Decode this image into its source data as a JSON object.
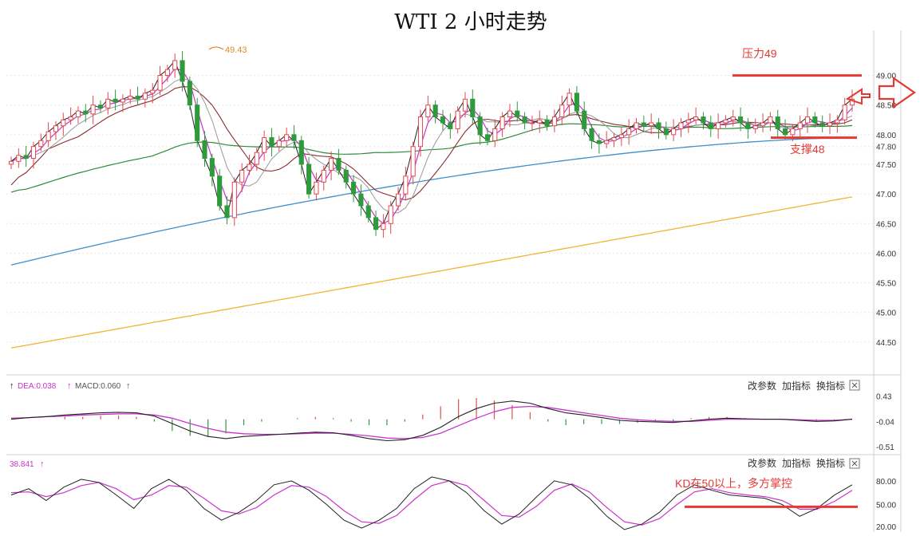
{
  "chart_data": [
    {
      "type": "candlestick",
      "title": "WTI 2 小时走势",
      "price_ylim": [
        44.0,
        49.6
      ],
      "y_ticks": [
        "49.00",
        "48.50",
        "48.00",
        "47.80",
        "47.50",
        "47.00",
        "46.50",
        "46.00",
        "45.50",
        "45.00",
        "44.50"
      ],
      "high_label": "49.43",
      "annotations": {
        "resistance": {
          "label": "压力49",
          "value": 49.0
        },
        "support": {
          "label": "支撑48",
          "value": 47.95
        }
      },
      "colors": {
        "up": "#e0484f",
        "down": "#2e9a3c",
        "ma200": "#f0b437",
        "ma100": "#3a8fce",
        "ma60": "#2e8b3b",
        "ma30": "#8b2b2b",
        "ma10": "#999999",
        "ma5": "#cc33cc",
        "close_line": "#222222",
        "annotation": "#e53935"
      },
      "closes": [
        47.55,
        47.65,
        47.6,
        47.8,
        47.9,
        48.05,
        48.15,
        48.25,
        48.3,
        48.4,
        48.35,
        48.5,
        48.45,
        48.6,
        48.55,
        48.6,
        48.65,
        48.6,
        48.7,
        48.75,
        49.0,
        49.1,
        49.25,
        48.9,
        48.5,
        47.9,
        47.6,
        47.3,
        46.8,
        46.6,
        47.2,
        47.4,
        47.5,
        47.7,
        47.95,
        47.8,
        47.9,
        48.0,
        47.9,
        47.5,
        47.0,
        47.2,
        47.4,
        47.6,
        47.4,
        47.2,
        47.0,
        46.8,
        46.6,
        46.4,
        46.5,
        46.8,
        47.0,
        47.3,
        47.8,
        48.3,
        48.5,
        48.3,
        48.2,
        48.1,
        48.4,
        48.6,
        48.3,
        48.0,
        47.9,
        48.1,
        48.3,
        48.4,
        48.3,
        48.2,
        48.2,
        48.25,
        48.15,
        48.3,
        48.5,
        48.7,
        48.4,
        48.1,
        47.9,
        47.85,
        47.9,
        47.95,
        48.0,
        48.1,
        48.2,
        48.15,
        48.2,
        48.1,
        48.0,
        48.1,
        48.2,
        48.25,
        48.3,
        48.2,
        48.1,
        48.2,
        48.25,
        48.3,
        48.2,
        48.1,
        48.15,
        48.2,
        48.3,
        48.1,
        48.0,
        48.1,
        48.2,
        48.3,
        48.2,
        48.15,
        48.2,
        48.25,
        48.5,
        48.6
      ]
    },
    {
      "type": "macd",
      "legend": {
        "dea": "DEA:0.038",
        "macd": "MACD:0.060"
      },
      "ylim": [
        -0.6,
        0.5
      ],
      "y_ticks": [
        "0.43",
        "-0.04",
        "-0.51"
      ],
      "controls": [
        "改参数",
        "加指标",
        "换指标"
      ],
      "dif": [
        0.0,
        0.03,
        0.05,
        0.08,
        0.1,
        0.12,
        0.13,
        0.12,
        0.06,
        -0.08,
        -0.22,
        -0.32,
        -0.36,
        -0.32,
        -0.3,
        -0.28,
        -0.26,
        -0.24,
        -0.25,
        -0.3,
        -0.36,
        -0.4,
        -0.38,
        -0.3,
        -0.15,
        0.05,
        0.2,
        0.3,
        0.34,
        0.3,
        0.2,
        0.12,
        0.08,
        0.03,
        -0.02,
        -0.04,
        -0.05,
        -0.06,
        -0.03,
        0.0,
        0.02,
        0.01,
        0.0,
        0.0,
        -0.02,
        -0.04,
        -0.03,
        0.0
      ],
      "dea": [
        0.02,
        0.03,
        0.05,
        0.06,
        0.08,
        0.09,
        0.1,
        0.1,
        0.08,
        0.02,
        -0.08,
        -0.17,
        -0.24,
        -0.27,
        -0.28,
        -0.28,
        -0.27,
        -0.26,
        -0.26,
        -0.28,
        -0.31,
        -0.35,
        -0.36,
        -0.34,
        -0.26,
        -0.12,
        0.02,
        0.14,
        0.22,
        0.24,
        0.22,
        0.17,
        0.12,
        0.07,
        0.02,
        -0.01,
        -0.03,
        -0.04,
        -0.04,
        -0.02,
        0.0,
        0.0,
        0.0,
        0.0,
        -0.01,
        -0.02,
        -0.02,
        0.0
      ],
      "hist": [
        0.0,
        0.0,
        0.0,
        0.02,
        0.02,
        0.03,
        0.03,
        0.02,
        -0.02,
        -0.1,
        -0.14,
        -0.15,
        -0.12,
        -0.05,
        -0.02,
        0.0,
        0.01,
        0.02,
        0.01,
        -0.02,
        -0.05,
        -0.05,
        -0.02,
        0.04,
        0.11,
        0.17,
        0.18,
        0.16,
        0.12,
        0.06,
        -0.02,
        -0.05,
        -0.04,
        -0.04,
        -0.04,
        -0.03,
        -0.02,
        -0.02,
        0.01,
        0.02,
        0.02,
        0.01,
        0.0,
        0.0,
        -0.01,
        -0.02,
        -0.01,
        0.0
      ]
    },
    {
      "type": "kd",
      "legend": "38.841",
      "ylim": [
        15,
        90
      ],
      "y_ticks": [
        "80.00",
        "50.00",
        "20.00"
      ],
      "controls": [
        "改参数",
        "加指标",
        "换指标"
      ],
      "annotation": {
        "label": "KD在50以上，多方掌控",
        "value": 47
      },
      "k": [
        62,
        70,
        55,
        72,
        82,
        78,
        62,
        45,
        70,
        82,
        68,
        45,
        30,
        40,
        55,
        75,
        80,
        68,
        50,
        30,
        20,
        30,
        45,
        70,
        85,
        80,
        65,
        42,
        25,
        38,
        60,
        80,
        75,
        58,
        35,
        18,
        25,
        40,
        62,
        75,
        68,
        62,
        60,
        58,
        50,
        35,
        45,
        62,
        75
      ],
      "d": [
        65,
        66,
        60,
        65,
        74,
        78,
        70,
        56,
        62,
        74,
        72,
        58,
        42,
        38,
        46,
        62,
        74,
        72,
        60,
        42,
        28,
        26,
        36,
        56,
        74,
        80,
        74,
        55,
        36,
        34,
        48,
        68,
        76,
        66,
        46,
        28,
        24,
        32,
        50,
        66,
        70,
        65,
        62,
        60,
        55,
        44,
        44,
        54,
        68
      ]
    }
  ]
}
